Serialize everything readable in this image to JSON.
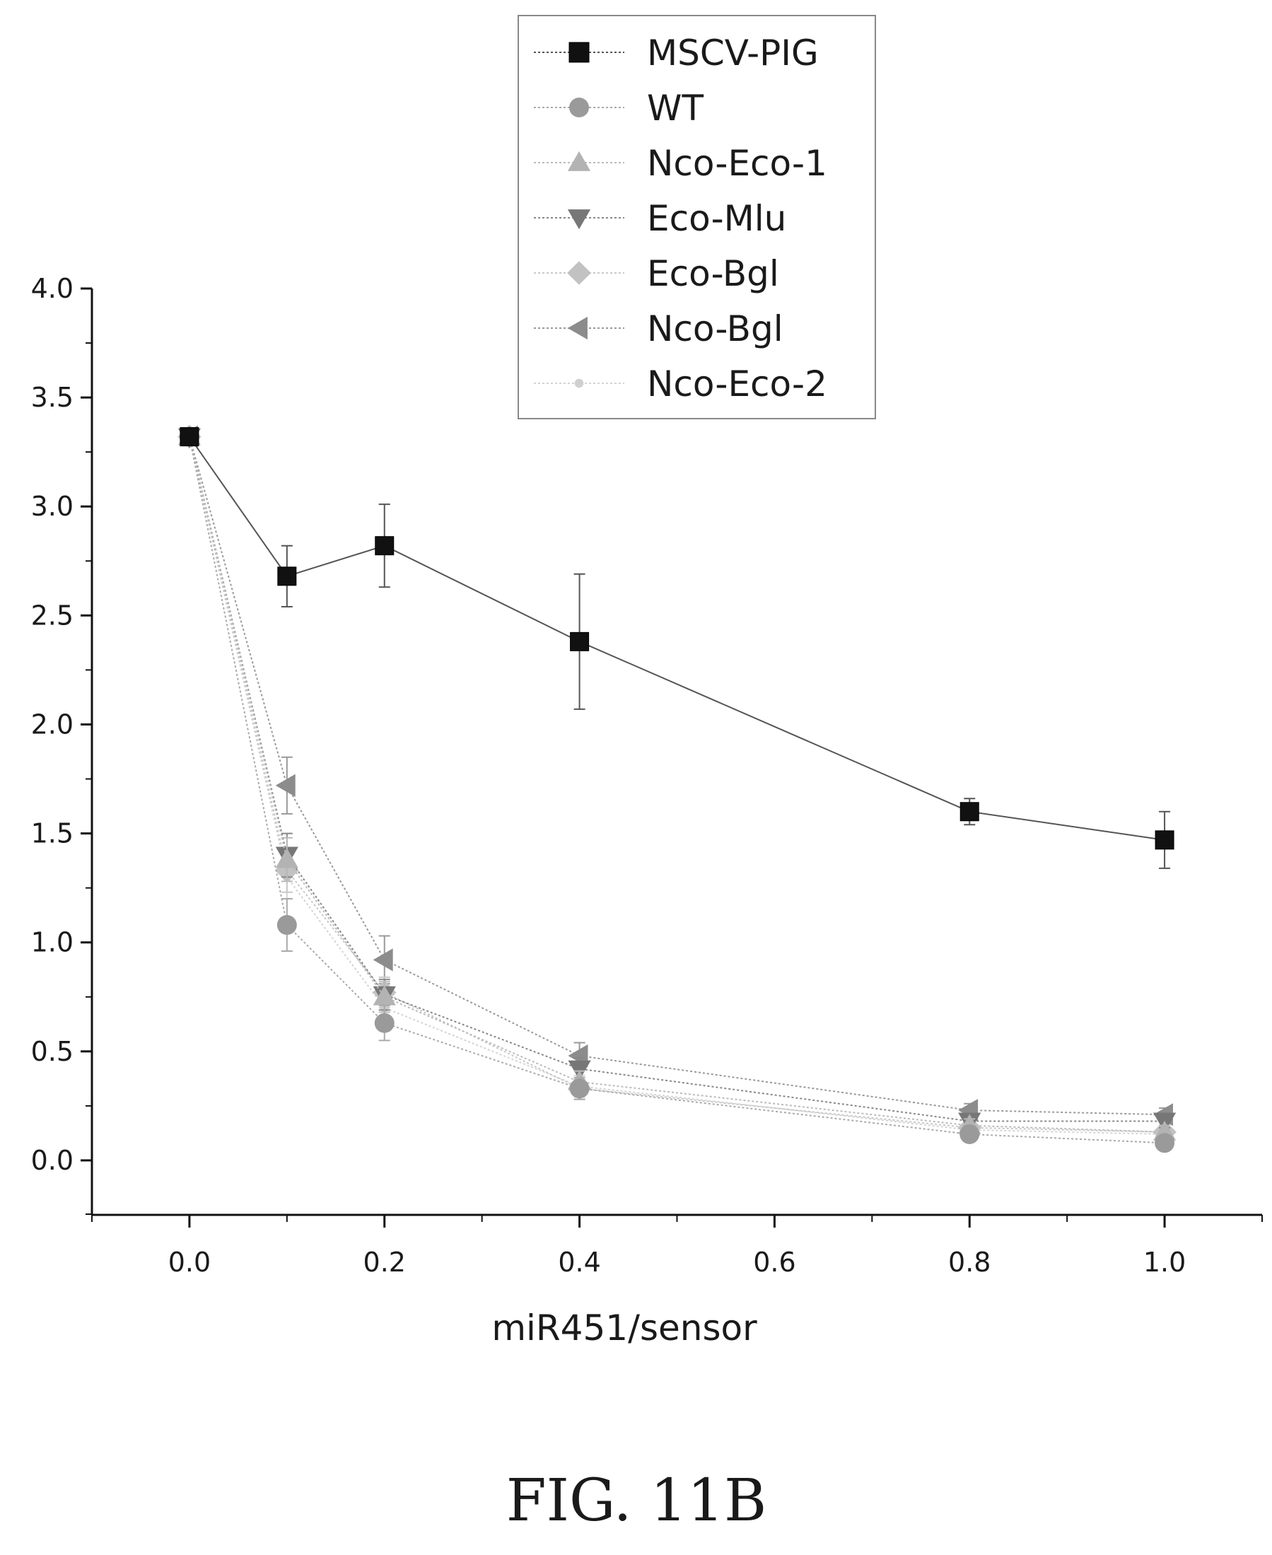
{
  "chart_data": {
    "type": "line",
    "xlabel": "miR451/sensor",
    "ylabel": "",
    "xlim": [
      -0.1,
      1.1
    ],
    "ylim": [
      -0.25,
      4.0
    ],
    "xticks": [
      "0.0",
      "0.2",
      "0.4",
      "0.6",
      "0.8",
      "1.0"
    ],
    "yticks": [
      "0.0",
      "0.5",
      "1.0",
      "1.5",
      "2.0",
      "2.5",
      "3.0",
      "3.5",
      "4.0"
    ],
    "x": [
      0.0,
      0.1,
      0.2,
      0.4,
      0.8,
      1.0
    ],
    "legend_position": "top-center",
    "grid": false,
    "series": [
      {
        "name": "MSCV-PIG",
        "marker": "square",
        "color": "#111111",
        "lineColor": "#555555",
        "values": [
          3.32,
          2.68,
          2.82,
          2.38,
          1.6,
          1.47
        ],
        "errors": [
          0,
          0.14,
          0.19,
          0.31,
          0.06,
          0.13
        ]
      },
      {
        "name": "WT",
        "marker": "circle",
        "color": "#9a9a9a",
        "lineColor": "#aaaaaa",
        "values": [
          3.32,
          1.08,
          0.63,
          0.33,
          0.12,
          0.08
        ],
        "errors": [
          0,
          0.12,
          0.08,
          0.05,
          0.03,
          0.03
        ]
      },
      {
        "name": "Nco-Eco-1",
        "marker": "triangle-up",
        "color": "#b3b3b3",
        "lineColor": "#bbbbbb",
        "values": [
          3.32,
          1.38,
          0.75,
          0.36,
          0.16,
          0.13
        ],
        "errors": [
          0,
          0.1,
          0.07,
          0.05,
          0.03,
          0.03
        ]
      },
      {
        "name": "Eco-Mlu",
        "marker": "triangle-down",
        "color": "#777777",
        "lineColor": "#888888",
        "values": [
          3.32,
          1.4,
          0.76,
          0.42,
          0.18,
          0.18
        ],
        "errors": [
          0,
          0.1,
          0.07,
          0.05,
          0.03,
          0.03
        ]
      },
      {
        "name": "Eco-Bgl",
        "marker": "diamond",
        "color": "#c2c2c2",
        "lineColor": "#c8c8c8",
        "values": [
          3.32,
          1.33,
          0.77,
          0.33,
          0.15,
          0.13
        ],
        "errors": [
          0,
          0.1,
          0.07,
          0.05,
          0.03,
          0.03
        ]
      },
      {
        "name": "Nco-Bgl",
        "marker": "triangle-left",
        "color": "#8c8c8c",
        "lineColor": "#999999",
        "values": [
          3.32,
          1.72,
          0.92,
          0.48,
          0.23,
          0.21
        ],
        "errors": [
          0,
          0.13,
          0.11,
          0.06,
          0.03,
          0.03
        ]
      },
      {
        "name": "Nco-Eco-2",
        "marker": "dot",
        "color": "#d0d0d0",
        "lineColor": "#d4d4d4",
        "values": [
          3.32,
          1.3,
          0.7,
          0.34,
          0.14,
          0.12
        ],
        "errors": [
          0,
          0.1,
          0.07,
          0.05,
          0.03,
          0.03
        ]
      }
    ]
  },
  "caption": "FIG. 11B"
}
